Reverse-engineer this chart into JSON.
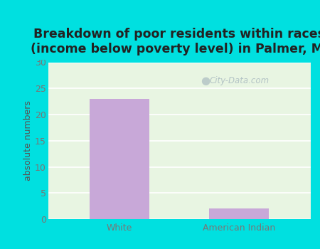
{
  "categories": [
    "White",
    "American Indian"
  ],
  "values": [
    23,
    2
  ],
  "bar_color": "#c8a8d8",
  "bar_edgecolor": "none",
  "title": "Breakdown of poor residents within races\n(income below poverty level) in Palmer, MI",
  "ylabel": "absolute numbers",
  "ylim": [
    0,
    30
  ],
  "yticks": [
    0,
    5,
    10,
    15,
    20,
    25,
    30
  ],
  "background_outer": "#00e0e0",
  "background_inner_left": "#d0e8c8",
  "background_inner_mid": "#f0f8ee",
  "background_inner_right": "#d8eed0",
  "grid_color": "#ffffff",
  "title_fontsize": 12.5,
  "label_fontsize": 9,
  "tick_fontsize": 9,
  "watermark_text": "City-Data.com",
  "watermark_color": "#aabbc0",
  "tick_color": "#777777",
  "ylabel_color": "#555555"
}
